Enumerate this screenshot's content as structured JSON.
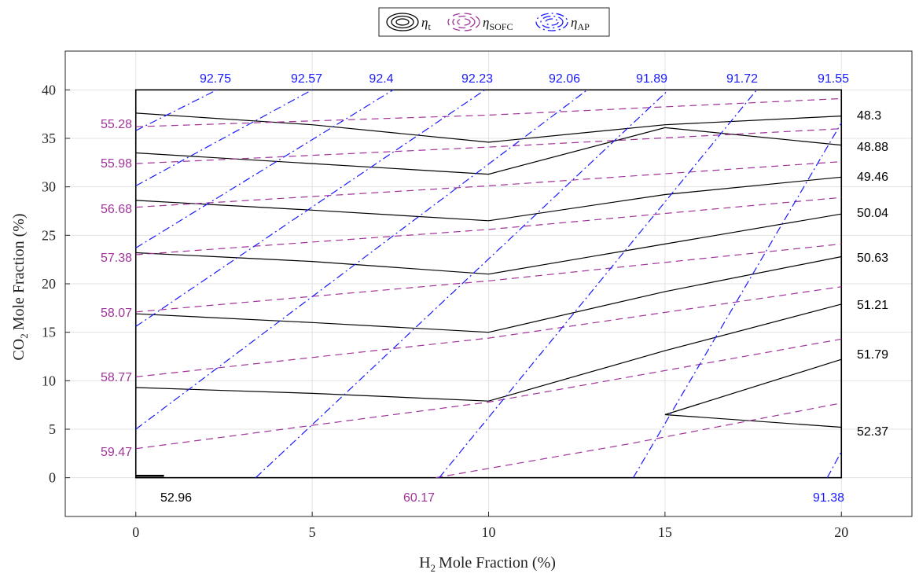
{
  "chart_data": {
    "type": "contour",
    "xlabel": "Mole Fraction (%)",
    "xlabel_prefix": "H",
    "xlabel_sub": "2",
    "ylabel": "Mole Fraction (%)",
    "ylabel_prefix": "CO",
    "ylabel_sub": "2",
    "xlim": [
      -2,
      22
    ],
    "ylim": [
      -4,
      44
    ],
    "data_xrange": [
      0,
      20
    ],
    "data_yrange": [
      0,
      40
    ],
    "xticks": [
      0,
      5,
      10,
      15,
      20
    ],
    "yticks": [
      0,
      5,
      10,
      15,
      20,
      25,
      30,
      35,
      40
    ],
    "grid": true,
    "legend_position": "top",
    "legend": [
      {
        "symbol": "η",
        "sub": "t",
        "style": "solid",
        "color": "#000000"
      },
      {
        "symbol": "η",
        "sub": "SOFC",
        "style": "dashed",
        "color": "#a0349a"
      },
      {
        "symbol": "η",
        "sub": "AP",
        "style": "dashdot",
        "color": "#1a1aff"
      }
    ],
    "series": [
      {
        "name": "η_t",
        "style": "solid",
        "color": "#000000",
        "levels": [
          {
            "label": "48.3",
            "points": [
              [
                0,
                37.6
              ],
              [
                5,
                36.4
              ],
              [
                10,
                34.6
              ],
              [
                15,
                36.4
              ],
              [
                20,
                37.3
              ]
            ]
          },
          {
            "label": "48.88",
            "points": [
              [
                0,
                33.5
              ],
              [
                5,
                32.4
              ],
              [
                10,
                31.3
              ],
              [
                15,
                36.1
              ],
              [
                20,
                34.3
              ]
            ]
          },
          {
            "label": "49.46",
            "points": [
              [
                0,
                28.6
              ],
              [
                5,
                27.6
              ],
              [
                10,
                26.5
              ],
              [
                15,
                29.2
              ],
              [
                20,
                31.0
              ]
            ]
          },
          {
            "label": "50.04",
            "points": [
              [
                0,
                23.2
              ],
              [
                5,
                22.3
              ],
              [
                10,
                21.0
              ],
              [
                15,
                24.1
              ],
              [
                20,
                27.2
              ]
            ]
          },
          {
            "label": "50.63",
            "points": [
              [
                0,
                16.9
              ],
              [
                5,
                16.0
              ],
              [
                10,
                15.0
              ],
              [
                15,
                19.2
              ],
              [
                20,
                22.8
              ]
            ]
          },
          {
            "label": "51.21",
            "points": [
              [
                0,
                9.3
              ],
              [
                5,
                8.7
              ],
              [
                10,
                7.9
              ],
              [
                15,
                13.1
              ],
              [
                20,
                17.9
              ]
            ]
          },
          {
            "label": "51.79",
            "points": [
              [
                15,
                6.5
              ],
              [
                20,
                12.2
              ]
            ]
          },
          {
            "label": "52.37",
            "points": [
              [
                15,
                6.5
              ],
              [
                20,
                5.2
              ]
            ]
          },
          {
            "label": "52.96",
            "points": [
              [
                0,
                0.2
              ],
              [
                0.8,
                0.2
              ]
            ]
          }
        ]
      },
      {
        "name": "η_SOFC",
        "style": "dashed",
        "color": "#a0349a",
        "levels": [
          {
            "label": "55.28",
            "points": [
              [
                0,
                36.2
              ],
              [
                10,
                37.4
              ],
              [
                20,
                39.1
              ]
            ]
          },
          {
            "label": "55.98",
            "points": [
              [
                0,
                32.4
              ],
              [
                10,
                34.1
              ],
              [
                20,
                36.0
              ]
            ]
          },
          {
            "label": "56.68",
            "points": [
              [
                0,
                27.9
              ],
              [
                10,
                30.1
              ],
              [
                20,
                32.6
              ]
            ]
          },
          {
            "label": "57.38",
            "points": [
              [
                0,
                23.0
              ],
              [
                10,
                25.6
              ],
              [
                20,
                28.9
              ]
            ]
          },
          {
            "label": "58.07",
            "points": [
              [
                0,
                17.1
              ],
              [
                10,
                20.3
              ],
              [
                20,
                24.1
              ]
            ]
          },
          {
            "label": "58.77",
            "points": [
              [
                0,
                10.4
              ],
              [
                10,
                14.4
              ],
              [
                20,
                19.7
              ]
            ]
          },
          {
            "label": "59.47",
            "points": [
              [
                0,
                3.0
              ],
              [
                10,
                7.8
              ],
              [
                20,
                14.3
              ]
            ]
          },
          {
            "label": "60.17",
            "points": [
              [
                8.5,
                0
              ],
              [
                14,
                3.5
              ],
              [
                20,
                7.7
              ]
            ]
          }
        ]
      },
      {
        "name": "η_AP",
        "style": "dashdot",
        "color": "#1a1aff",
        "levels": [
          {
            "label": "92.75",
            "points": [
              [
                0,
                35.8
              ],
              [
                2.3,
                40
              ]
            ]
          },
          {
            "label": "92.57",
            "points": [
              [
                0,
                30.1
              ],
              [
                5,
                40
              ]
            ]
          },
          {
            "label": "92.4",
            "points": [
              [
                0,
                23.7
              ],
              [
                7.3,
                40
              ]
            ]
          },
          {
            "label": "92.23",
            "points": [
              [
                0,
                15.6
              ],
              [
                9.9,
                40
              ]
            ]
          },
          {
            "label": "92.06",
            "points": [
              [
                0,
                5.0
              ],
              [
                12.8,
                40
              ]
            ]
          },
          {
            "label": "91.89",
            "points": [
              [
                3.4,
                0
              ],
              [
                15.1,
                40
              ]
            ]
          },
          {
            "label": "91.72",
            "points": [
              [
                8.6,
                0
              ],
              [
                17.6,
                40
              ]
            ]
          },
          {
            "label": "91.55",
            "points": [
              [
                14.1,
                0
              ],
              [
                20,
                36.6
              ]
            ]
          },
          {
            "label": "91.38",
            "points": [
              [
                19.6,
                0
              ],
              [
                20,
                2.7
              ]
            ]
          }
        ]
      }
    ]
  }
}
